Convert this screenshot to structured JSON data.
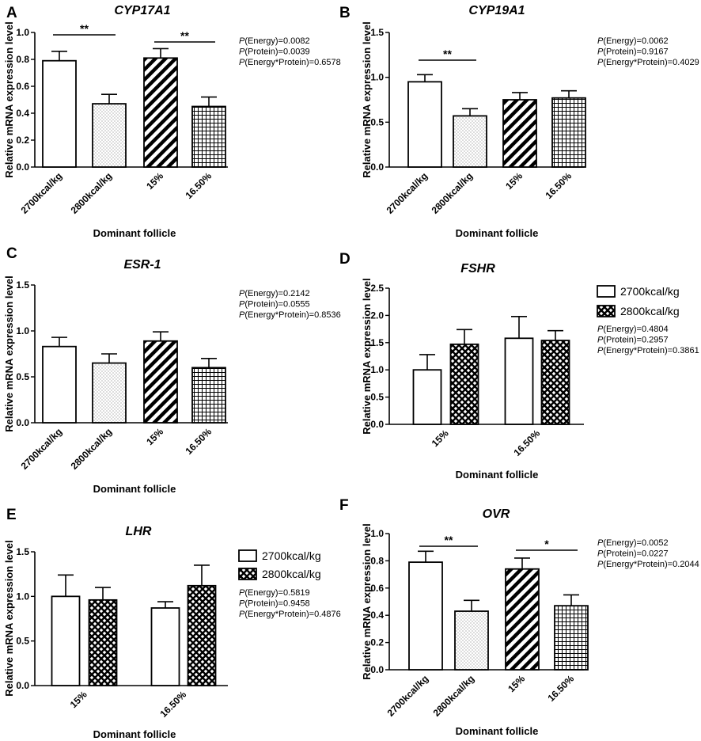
{
  "colors": {
    "ink": "#000000",
    "background": "#ffffff"
  },
  "chart_data": [
    {
      "panel": "A",
      "type": "bar",
      "title": "CYP17A1",
      "xlabel": "Dominant follicle",
      "ylabel": "Relative mRNA expression level",
      "ylim": [
        0,
        1.0
      ],
      "yticks": [
        "0.0",
        "0.2",
        "0.4",
        "0.6",
        "0.8",
        "1.0"
      ],
      "categories": [
        "2700kcal/kg",
        "2800kcal/kg",
        "15%",
        "16.50%"
      ],
      "values": [
        0.79,
        0.47,
        0.81,
        0.45
      ],
      "errors": [
        0.07,
        0.07,
        0.07,
        0.07
      ],
      "patterns": [
        "open",
        "dots",
        "diag",
        "grid"
      ],
      "significance": [
        {
          "from": 0,
          "to": 1,
          "label": "**"
        },
        {
          "from": 2,
          "to": 3,
          "label": "**"
        }
      ],
      "pvalues": [
        {
          "prefix": "P",
          "text": "(Energy)=0.0082"
        },
        {
          "prefix": "P",
          "text": "(Protein)=0.0039"
        },
        {
          "prefix": "P",
          "text": "(Energy*Protein)=0.6578"
        }
      ]
    },
    {
      "panel": "B",
      "type": "bar",
      "title": "CYP19A1",
      "xlabel": "Dominant follicle",
      "ylabel": "Relative mRNA expression level",
      "ylim": [
        0,
        1.5
      ],
      "yticks": [
        "0.0",
        "0.5",
        "1.0",
        "1.5"
      ],
      "categories": [
        "2700kcal/kg",
        "2800kcal/kg",
        "15%",
        "16.50%"
      ],
      "values": [
        0.95,
        0.57,
        0.75,
        0.77
      ],
      "errors": [
        0.08,
        0.08,
        0.08,
        0.08
      ],
      "patterns": [
        "open",
        "dots",
        "diag",
        "grid"
      ],
      "significance": [
        {
          "from": 0,
          "to": 1,
          "label": "**"
        }
      ],
      "pvalues": [
        {
          "prefix": "P",
          "text": "(Energy)=0.0062"
        },
        {
          "prefix": "P",
          "text": "(Protein)=0.9167"
        },
        {
          "prefix": "P",
          "text": "(Energy*Protein)=0.4029"
        }
      ]
    },
    {
      "panel": "C",
      "type": "bar",
      "title": "ESR-1",
      "xlabel": "Dominant follicle",
      "ylabel": "Relative mRNA expression level",
      "ylim": [
        0,
        1.5
      ],
      "yticks": [
        "0.0",
        "0.5",
        "1.0",
        "1.5"
      ],
      "categories": [
        "2700kcal/kg",
        "2800kcal/kg",
        "15%",
        "16.50%"
      ],
      "values": [
        0.83,
        0.65,
        0.89,
        0.6
      ],
      "errors": [
        0.1,
        0.1,
        0.1,
        0.1
      ],
      "patterns": [
        "open",
        "dots",
        "diag",
        "grid"
      ],
      "significance": [],
      "pvalues": [
        {
          "prefix": "P",
          "text": "(Energy)=0.2142"
        },
        {
          "prefix": "P",
          "text": "(Protein)=0.0555"
        },
        {
          "prefix": "P",
          "text": "(Energy*Protein)=0.8536"
        }
      ]
    },
    {
      "panel": "D",
      "type": "bar",
      "title": "FSHR",
      "xlabel": "Dominant follicle",
      "ylabel": "Relative mRNA expression level",
      "ylim": [
        0,
        2.5
      ],
      "yticks": [
        "0.0",
        "0.5",
        "1.0",
        "1.5",
        "2.0",
        "2.5"
      ],
      "categories": [
        "15%",
        "16.50%"
      ],
      "series": [
        {
          "name": "2700kcal/kg",
          "values": [
            1.0,
            1.58
          ],
          "errors": [
            0.28,
            0.4
          ],
          "pattern": "open"
        },
        {
          "name": "2800kcal/kg",
          "values": [
            1.47,
            1.54
          ],
          "errors": [
            0.27,
            0.18
          ],
          "pattern": "cross"
        }
      ],
      "legend": [
        "2700kcal/kg",
        "2800kcal/kg"
      ],
      "pvalues": [
        {
          "prefix": "P",
          "text": "(Energy)=0.4804"
        },
        {
          "prefix": "P",
          "text": "(Protein)=0.2957"
        },
        {
          "prefix": "P",
          "text": "(Energy*Protein)=0.3861"
        }
      ]
    },
    {
      "panel": "E",
      "type": "bar",
      "title": "LHR",
      "xlabel": "Dominant follicle",
      "ylabel": "Relative mRNA expression level",
      "ylim": [
        0,
        1.5
      ],
      "yticks": [
        "0.0",
        "0.5",
        "1.0",
        "1.5"
      ],
      "categories": [
        "15%",
        "16.50%"
      ],
      "series": [
        {
          "name": "2700kcal/kg",
          "values": [
            1.0,
            0.87
          ],
          "errors": [
            0.24,
            0.07
          ],
          "pattern": "open"
        },
        {
          "name": "2800kcal/kg",
          "values": [
            0.96,
            1.12
          ],
          "errors": [
            0.14,
            0.23
          ],
          "pattern": "cross"
        }
      ],
      "legend": [
        "2700kcal/kg",
        "2800kcal/kg"
      ],
      "pvalues": [
        {
          "prefix": "P",
          "text": "(Energy)=0.5819"
        },
        {
          "prefix": "P",
          "text": "(Protein)=0.9458"
        },
        {
          "prefix": "P",
          "text": "(Energy*Protein)=0.4876"
        }
      ]
    },
    {
      "panel": "F",
      "type": "bar",
      "title": "OVR",
      "xlabel": "Dominant follicle",
      "ylabel": "Relative mRNA expression level",
      "ylim": [
        0,
        1.0
      ],
      "yticks": [
        "0.0",
        "0.2",
        "0.4",
        "0.6",
        "0.8",
        "1.0"
      ],
      "categories": [
        "2700kcal/kg",
        "2800kcal/kg",
        "15%",
        "16.50%"
      ],
      "values": [
        0.79,
        0.43,
        0.74,
        0.47
      ],
      "errors": [
        0.08,
        0.08,
        0.08,
        0.08
      ],
      "patterns": [
        "open",
        "dots",
        "diag",
        "grid"
      ],
      "significance": [
        {
          "from": 0,
          "to": 1,
          "label": "**"
        },
        {
          "from": 2,
          "to": 3,
          "label": "*"
        }
      ],
      "pvalues": [
        {
          "prefix": "P",
          "text": "(Energy)=0.0052"
        },
        {
          "prefix": "P",
          "text": "(Protein)=0.0227"
        },
        {
          "prefix": "P",
          "text": "(Energy*Protein)=0.2044"
        }
      ]
    }
  ]
}
